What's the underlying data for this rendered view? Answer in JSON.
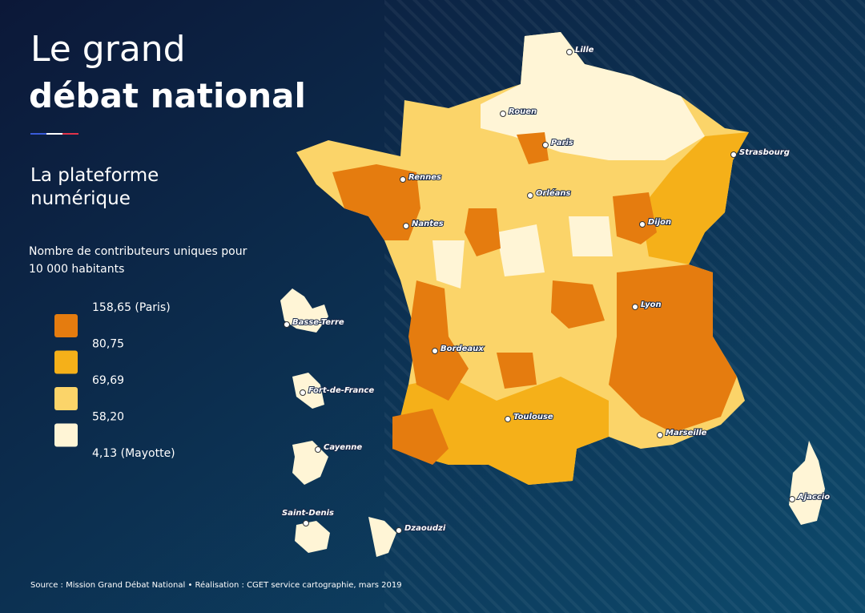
{
  "header": {
    "title_light": "Le grand",
    "title_bold": "débat national",
    "subtitle": "La plateforme numérique"
  },
  "legend": {
    "title": "Nombre de contributeurs uniques pour 10 000 habitants",
    "breaks": [
      "158,65 (Paris)",
      "80,75",
      "69,69",
      "58,20",
      "4,13 (Mayotte)"
    ],
    "colors": [
      "#e57c0f",
      "#f5b019",
      "#fbd469",
      "#fff5d6"
    ]
  },
  "cities": [
    "Lille",
    "Rouen",
    "Paris",
    "Strasbourg",
    "Rennes",
    "Orléans",
    "Nantes",
    "Dijon",
    "Lyon",
    "Bordeaux",
    "Toulouse",
    "Marseille",
    "Ajaccio",
    "Basse-Terre",
    "Fort-de-France",
    "Cayenne",
    "Saint-Denis",
    "Dzaoudzi"
  ],
  "source": "Source : Mission Grand Débat National • Réalisation : CGET service cartographie, mars 2019"
}
